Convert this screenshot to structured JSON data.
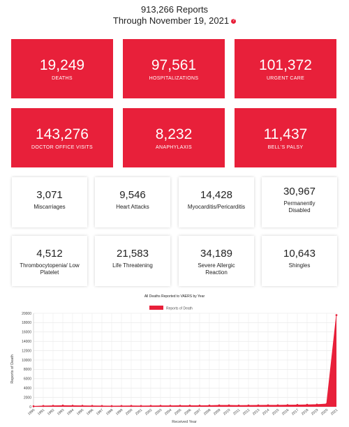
{
  "header": {
    "line1": "913,266 Reports",
    "line2": "Through November 19, 2021",
    "info_icon": "question-circle-icon",
    "accent": "#e8203a"
  },
  "red_cards": [
    {
      "value": "19,249",
      "label": "DEATHS"
    },
    {
      "value": "97,561",
      "label": "HOSPITALIZATIONS"
    },
    {
      "value": "101,372",
      "label": "URGENT CARE"
    },
    {
      "value": "143,276",
      "label": "DOCTOR OFFICE VISITS"
    },
    {
      "value": "8,232",
      "label": "ANAPHYLAXIS"
    },
    {
      "value": "11,437",
      "label": "BELL'S PALSY"
    }
  ],
  "white_cards": [
    {
      "value": "3,071",
      "label": "Miscarriages"
    },
    {
      "value": "9,546",
      "label": "Heart Attacks"
    },
    {
      "value": "14,428",
      "label": "Myocarditis/Pericarditis"
    },
    {
      "value": "30,967",
      "label": "Permanently Disabled"
    },
    {
      "value": "4,512",
      "label": "Thrombocytopenia/ Low Platelet"
    },
    {
      "value": "21,583",
      "label": "Life Threatening"
    },
    {
      "value": "34,189",
      "label": "Severe Allergic Reaction"
    },
    {
      "value": "10,643",
      "label": "Shingles"
    }
  ],
  "chart_data": {
    "type": "area",
    "title": "All Deaths Reported to VAERS by Year",
    "xlabel": "Received Year",
    "ylabel": "Reports of Death",
    "ylim": [
      0,
      20000
    ],
    "yticks": [
      0,
      2000,
      4000,
      6000,
      8000,
      10000,
      12000,
      14000,
      16000,
      18000,
      20000
    ],
    "grid": true,
    "legend_position": "top",
    "color": "#e8203a",
    "x": [
      "1990",
      "1991",
      "1992",
      "1993",
      "1994",
      "1995",
      "1996",
      "1997",
      "1998",
      "1999",
      "2000",
      "2001",
      "2002",
      "2003",
      "2004",
      "2005",
      "2006",
      "2007",
      "2008",
      "2009",
      "2010",
      "2011",
      "2012",
      "2013",
      "2014",
      "2015",
      "2016",
      "2017",
      "2018",
      "2019",
      "2020",
      "2021"
    ],
    "series": [
      {
        "name": "Reports of Death",
        "values": [
          100,
          160,
          210,
          250,
          220,
          200,
          180,
          160,
          140,
          160,
          180,
          170,
          190,
          200,
          210,
          220,
          230,
          230,
          250,
          300,
          290,
          260,
          280,
          300,
          310,
          320,
          350,
          380,
          420,
          460,
          600,
          19600
        ]
      }
    ]
  }
}
